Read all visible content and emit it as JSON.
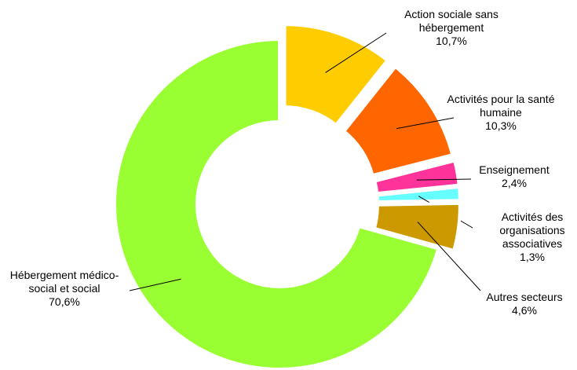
{
  "chart_data": {
    "type": "donut",
    "categories": [
      "Action sociale sans hébergement",
      "Activités pour la santé humaine",
      "Enseignement",
      "Activités des organisations associatives",
      "Autres secteurs",
      "Hébergement médico-social et social"
    ],
    "values": [
      10.7,
      10.3,
      2.4,
      1.3,
      4.6,
      70.6
    ],
    "value_labels": [
      "10,7%",
      "10,3%",
      "2,4%",
      "1,3%",
      "4,6%",
      "70,6%"
    ],
    "colors": [
      "#ffcc00",
      "#ff6600",
      "#ff3399",
      "#66ffff",
      "#cc9900",
      "#99ff33"
    ]
  }
}
